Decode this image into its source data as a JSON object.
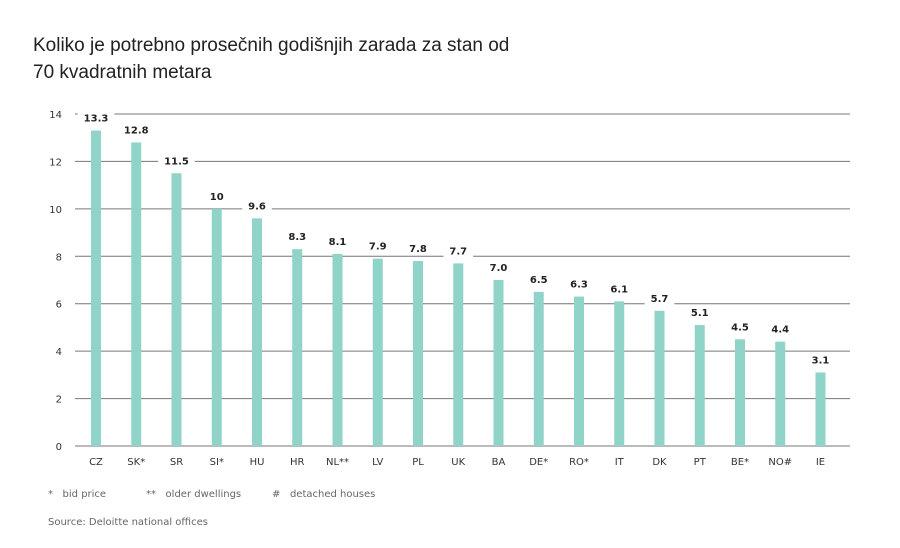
{
  "chart_data": {
    "type": "bar",
    "title": "Koliko je potrebno prosečnih godišnjih zarada za stan od 70 kvadratnih metara",
    "categories": [
      "CZ",
      "SK*",
      "SR",
      "SI*",
      "HU",
      "HR",
      "NL**",
      "LV",
      "PL",
      "UK",
      "BA",
      "DE*",
      "RO*",
      "IT",
      "DK",
      "PT",
      "BE*",
      "NO#",
      "IE"
    ],
    "values": [
      13.3,
      12.8,
      11.5,
      10,
      9.6,
      8.3,
      8.1,
      7.9,
      7.8,
      7.7,
      7.0,
      6.5,
      6.3,
      6.1,
      5.7,
      5.1,
      4.5,
      4.4,
      3.1
    ],
    "labels": [
      "13.3",
      "12.8",
      "11.5",
      "10",
      "9.6",
      "8.3",
      "8.1",
      "7.9",
      "7.8",
      "7.7",
      "7.0",
      "6.5",
      "6.3",
      "6.1",
      "5.7",
      "5.1",
      "4.5",
      "4.4",
      "3.1"
    ],
    "yticks": [
      "0",
      "2",
      "4",
      "6",
      "8",
      "10",
      "12",
      "14"
    ],
    "ylim": [
      0,
      14
    ],
    "grid": true,
    "bar_color": "#8fd3c9",
    "xlabel": "",
    "ylabel": ""
  },
  "notes": [
    {
      "symbol": "*",
      "text": "bid price"
    },
    {
      "symbol": "**",
      "text": "older dwellings"
    },
    {
      "symbol": "#",
      "text": "detached houses"
    }
  ],
  "source": "Source: Deloitte national offices"
}
